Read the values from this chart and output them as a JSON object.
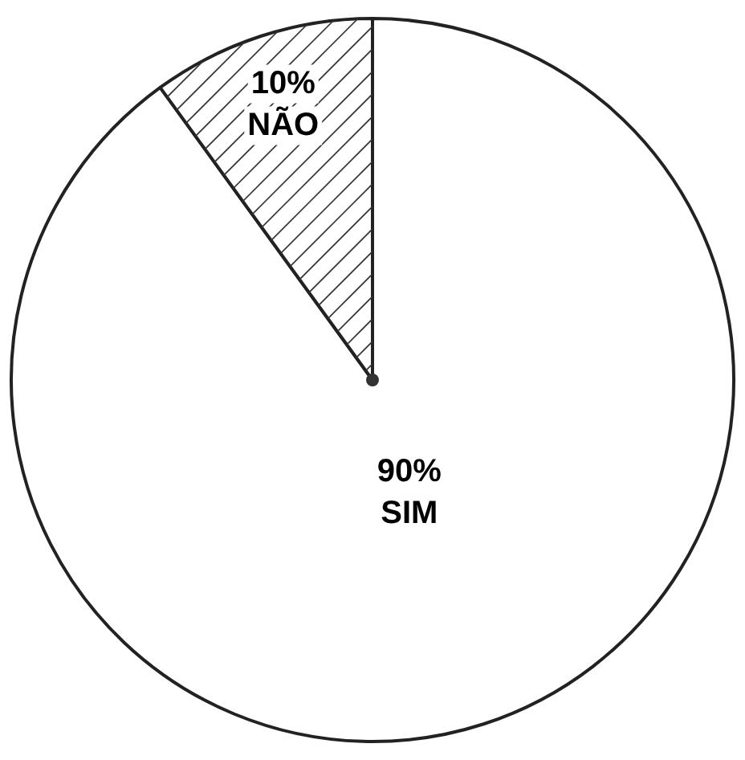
{
  "chart_data": {
    "type": "pie",
    "categories": [
      "SIM",
      "NÃO"
    ],
    "values": [
      90,
      10
    ],
    "value_labels": [
      "90%",
      "10%"
    ],
    "colors": [
      "#ffffff",
      "#ffffff"
    ],
    "legend": false
  }
}
